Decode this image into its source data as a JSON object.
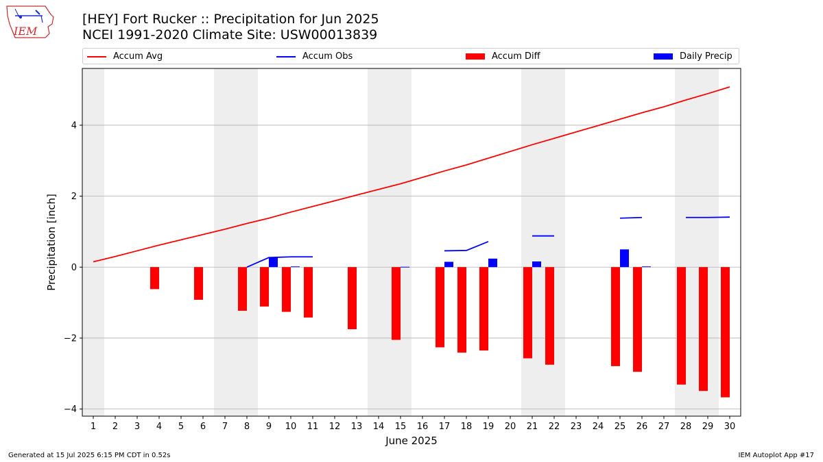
{
  "header": {
    "title_line1": "[HEY] Fort Rucker :: Precipitation for Jun 2025",
    "title_line2": "NCEI 1991-2020 Climate Site: USW00013839"
  },
  "logo": {
    "text": "IEM",
    "icon": "iem-iowa-logo-icon"
  },
  "footer": {
    "generated": "Generated at 15 Jul 2025 6:15 PM CDT in 0.52s",
    "app": "IEM Autoplot App #17"
  },
  "chart_data": {
    "type": "bar",
    "xlabel": "June 2025",
    "ylabel": "Precipitation [inch]",
    "xlim": [
      0.5,
      30.5
    ],
    "ylim": [
      -4.2,
      5.6
    ],
    "yticks": [
      -4,
      -2,
      0,
      2,
      4
    ],
    "ytick_labels": [
      "−4",
      "−2",
      "0",
      "2",
      "4"
    ],
    "x_ticks": [
      1,
      2,
      3,
      4,
      5,
      6,
      7,
      8,
      9,
      10,
      11,
      12,
      13,
      14,
      15,
      16,
      17,
      18,
      19,
      20,
      21,
      22,
      23,
      24,
      25,
      26,
      27,
      28,
      29,
      30
    ],
    "grid": "horizontal",
    "weekend_shading": [
      [
        0.5,
        1.5
      ],
      [
        6.5,
        8.5
      ],
      [
        13.5,
        15.5
      ],
      [
        20.5,
        22.5
      ],
      [
        27.5,
        29.5
      ]
    ],
    "legend_position": "top",
    "colors": {
      "accum_avg": "#ff0000",
      "accum_obs": "#0000ff",
      "accum_diff": "#ff0000",
      "daily_precip": "#0000ff",
      "weekend": "#eeeeee",
      "grid": "#b0b0b0"
    },
    "series": [
      {
        "name": "Accum Avg",
        "kind": "line",
        "x": [
          1,
          2,
          3,
          4,
          5,
          6,
          7,
          8,
          9,
          10,
          11,
          12,
          13,
          14,
          15,
          16,
          17,
          18,
          19,
          20,
          21,
          22,
          23,
          24,
          25,
          26,
          27,
          28,
          29,
          30
        ],
        "values": [
          0.15,
          0.3,
          0.46,
          0.62,
          0.77,
          0.92,
          1.07,
          1.23,
          1.38,
          1.55,
          1.71,
          1.87,
          2.03,
          2.19,
          2.35,
          2.53,
          2.71,
          2.88,
          3.07,
          3.26,
          3.45,
          3.63,
          3.81,
          3.99,
          4.17,
          4.35,
          4.52,
          4.71,
          4.89,
          5.08
        ]
      },
      {
        "name": "Accum Obs",
        "kind": "line",
        "segments": [
          {
            "x": [
              8,
              9,
              10,
              11
            ],
            "values": [
              0.0,
              0.27,
              0.29,
              0.29
            ]
          },
          {
            "x": [
              17,
              18,
              19
            ],
            "values": [
              0.46,
              0.47,
              0.72
            ]
          },
          {
            "x": [
              21,
              22
            ],
            "values": [
              0.88,
              0.88
            ]
          },
          {
            "x": [
              25,
              26
            ],
            "values": [
              1.38,
              1.4
            ]
          },
          {
            "x": [
              28,
              29,
              30
            ],
            "values": [
              1.4,
              1.4,
              1.41
            ]
          }
        ]
      },
      {
        "name": "Accum Diff",
        "kind": "bar",
        "x": [
          4,
          6,
          8,
          9,
          10,
          11,
          13,
          15,
          17,
          18,
          19,
          21,
          22,
          25,
          26,
          28,
          29,
          30
        ],
        "values": [
          -0.62,
          -0.92,
          -1.23,
          -1.11,
          -1.26,
          -1.42,
          -1.75,
          -2.05,
          -2.26,
          -2.41,
          -2.35,
          -2.57,
          -2.75,
          -2.79,
          -2.95,
          -3.31,
          -3.49,
          -3.67
        ]
      },
      {
        "name": "Daily Precip",
        "kind": "bar",
        "x": [
          9,
          10,
          15,
          17,
          19,
          21,
          25,
          26
        ],
        "values": [
          0.27,
          0.02,
          0.01,
          0.15,
          0.24,
          0.16,
          0.5,
          0.02
        ]
      }
    ]
  }
}
